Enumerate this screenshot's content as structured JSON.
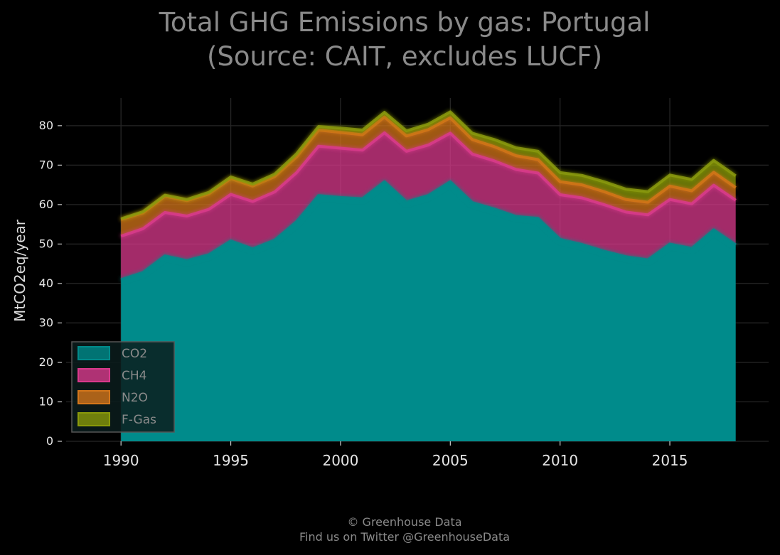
{
  "chart_data": {
    "type": "area",
    "title_lines": [
      "Total GHG Emissions by gas: Portugal",
      "(Source: CAIT, excludes LUCF)"
    ],
    "xlabel": "",
    "ylabel": "MtCO2eq/year",
    "xlim": [
      1987.5,
      2019.5
    ],
    "ylim": [
      0,
      87
    ],
    "x_ticks": [
      1990,
      1995,
      2000,
      2005,
      2010,
      2015
    ],
    "x_tick_labels": [
      "1990",
      "1995",
      "2000",
      "2005",
      "2010",
      "2015"
    ],
    "y_ticks": [
      0,
      10,
      20,
      30,
      40,
      50,
      60,
      70,
      80
    ],
    "y_tick_labels": [
      "0",
      "10",
      "20",
      "30",
      "40",
      "50",
      "60",
      "70",
      "80"
    ],
    "grid": true,
    "stacked": true,
    "legend_position": "lower-left",
    "x": [
      1990,
      1991,
      1992,
      1993,
      1994,
      1995,
      1996,
      1997,
      1998,
      1999,
      2000,
      2001,
      2002,
      2003,
      2004,
      2005,
      2006,
      2007,
      2008,
      2009,
      2010,
      2011,
      2012,
      2013,
      2014,
      2015,
      2016,
      2017,
      2018
    ],
    "series": [
      {
        "name": "CO2",
        "color": "#008b8b",
        "values": [
          41.0,
          42.8,
          47.0,
          45.8,
          47.3,
          50.8,
          48.8,
          51.0,
          55.7,
          62.3,
          61.8,
          61.5,
          65.8,
          60.7,
          62.3,
          65.8,
          60.5,
          58.9,
          57.0,
          56.5,
          51.2,
          49.9,
          48.2,
          46.8,
          46.0,
          50.0,
          48.9,
          53.6,
          49.8
        ]
      },
      {
        "name": "CH4",
        "color": "#d9398c",
        "values": [
          11.0,
          11.1,
          11.0,
          11.3,
          11.5,
          11.8,
          12.0,
          12.2,
          12.4,
          12.5,
          12.5,
          12.3,
          12.4,
          12.8,
          12.8,
          12.3,
          12.3,
          12.2,
          11.9,
          11.5,
          11.3,
          11.8,
          11.8,
          11.3,
          11.4,
          11.3,
          11.3,
          11.3,
          11.3
        ]
      },
      {
        "name": "N2O",
        "color": "#d4761a",
        "values": [
          4.2,
          4.0,
          4.1,
          3.9,
          3.9,
          4.0,
          3.9,
          3.9,
          4.0,
          4.1,
          4.0,
          3.9,
          4.0,
          3.9,
          3.9,
          3.9,
          3.7,
          3.6,
          3.5,
          3.4,
          3.3,
          3.3,
          3.3,
          3.2,
          3.2,
          3.4,
          3.3,
          3.3,
          3.2
        ]
      },
      {
        "name": "F-Gas",
        "color": "#8a9a0a",
        "values": [
          0.2,
          0.3,
          0.3,
          0.3,
          0.4,
          0.4,
          0.5,
          0.6,
          0.8,
          0.9,
          1.1,
          1.2,
          1.2,
          1.3,
          1.4,
          1.5,
          1.6,
          1.8,
          2.0,
          2.1,
          2.3,
          2.4,
          2.5,
          2.6,
          2.7,
          2.8,
          2.9,
          3.0,
          3.0
        ]
      }
    ]
  },
  "credit": {
    "line1": "© Greenhouse Data",
    "line2": "Find us on Twitter @GreenhouseData"
  }
}
